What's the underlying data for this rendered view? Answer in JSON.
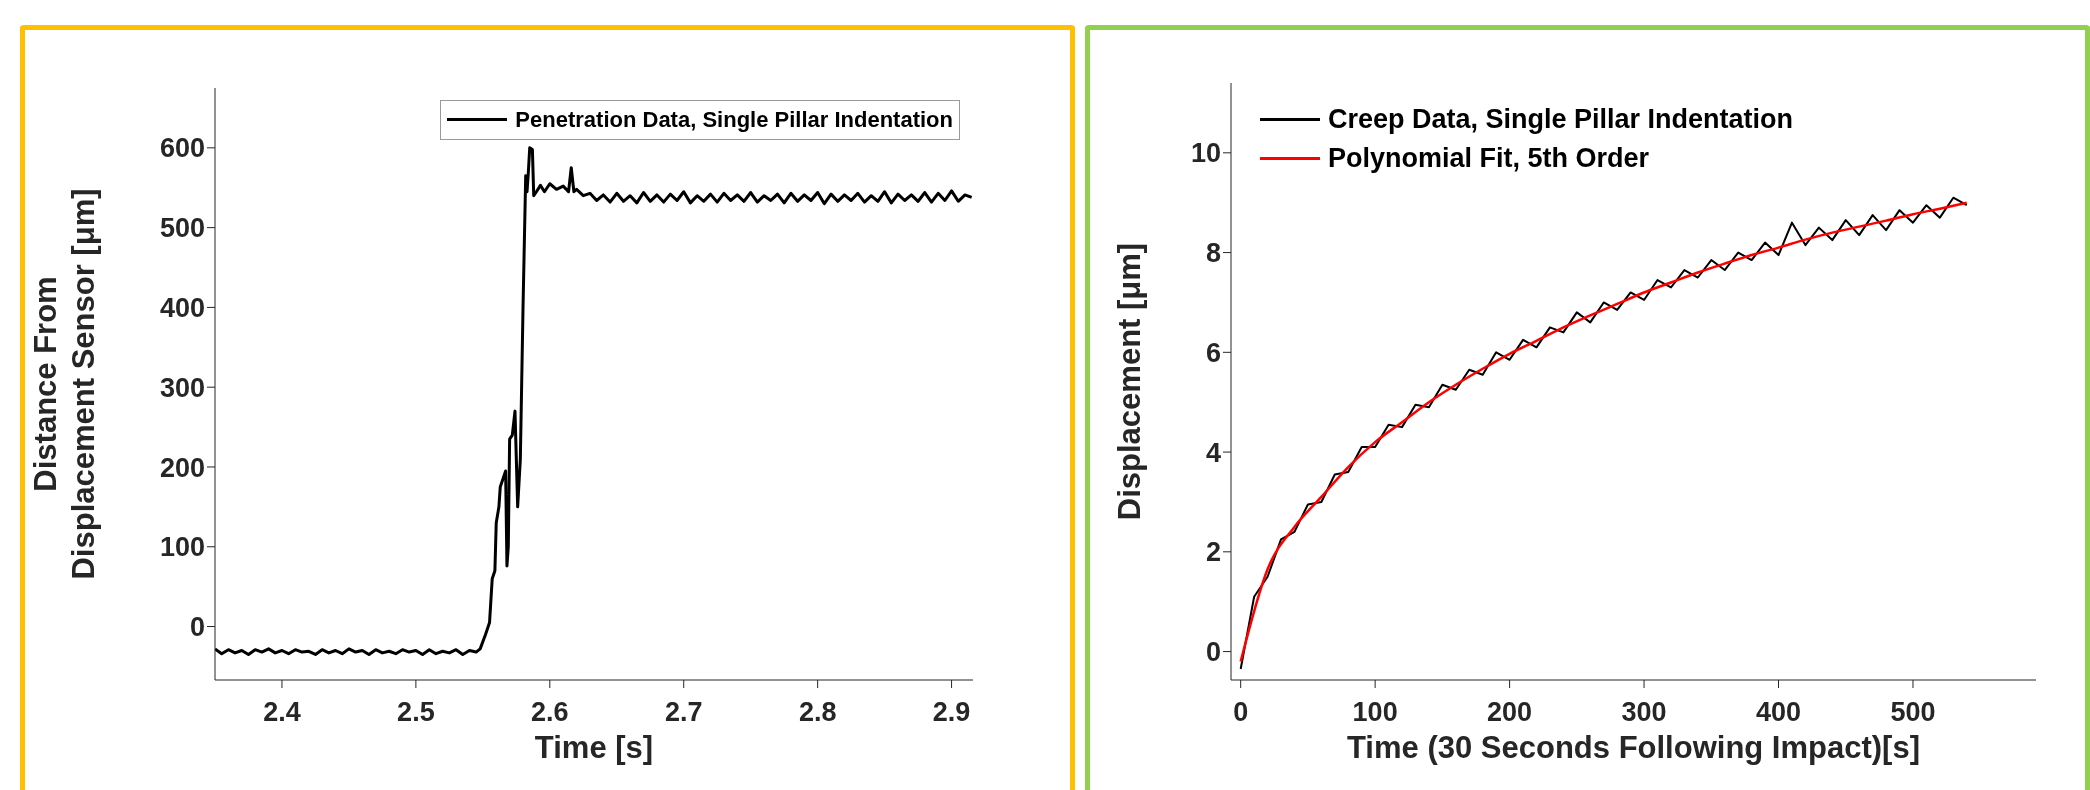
{
  "chart_data": [
    {
      "type": "line",
      "xlabel": "Time [s]",
      "ylabel": "Distance From\nDisplacement Sensor [μm]",
      "xlim": [
        2.35,
        2.916
      ],
      "xticks": [
        2.4,
        2.5,
        2.6,
        2.7,
        2.8,
        2.9
      ],
      "ylim": [
        -67,
        675
      ],
      "yticks": [
        0,
        100,
        200,
        300,
        400,
        500,
        600
      ],
      "legend": "top right",
      "grid": false,
      "marker": "none",
      "series": [
        {
          "name": "Penetration Data, Single Pillar Indentation",
          "color": "#000000",
          "x": [
            2.35,
            2.355,
            2.36,
            2.365,
            2.37,
            2.375,
            2.38,
            2.385,
            2.39,
            2.395,
            2.4,
            2.405,
            2.41,
            2.415,
            2.42,
            2.425,
            2.43,
            2.435,
            2.44,
            2.445,
            2.45,
            2.455,
            2.46,
            2.465,
            2.47,
            2.475,
            2.48,
            2.485,
            2.49,
            2.495,
            2.5,
            2.505,
            2.51,
            2.515,
            2.52,
            2.525,
            2.53,
            2.535,
            2.54,
            2.545,
            2.548,
            2.552,
            2.555,
            2.557,
            2.559,
            2.56,
            2.562,
            2.563,
            2.565,
            2.567,
            2.568,
            2.569,
            2.57,
            2.572,
            2.574,
            2.576,
            2.578,
            2.58,
            2.582,
            2.583,
            2.584,
            2.585,
            2.587,
            2.588,
            2.59,
            2.593,
            2.596,
            2.6,
            2.605,
            2.61,
            2.614,
            2.616,
            2.618,
            2.62,
            2.625,
            2.63,
            2.635,
            2.64,
            2.645,
            2.65,
            2.655,
            2.66,
            2.665,
            2.67,
            2.675,
            2.68,
            2.685,
            2.69,
            2.695,
            2.7,
            2.705,
            2.71,
            2.715,
            2.72,
            2.725,
            2.73,
            2.735,
            2.74,
            2.745,
            2.75,
            2.755,
            2.76,
            2.765,
            2.77,
            2.775,
            2.78,
            2.785,
            2.79,
            2.795,
            2.8,
            2.805,
            2.81,
            2.815,
            2.82,
            2.825,
            2.83,
            2.835,
            2.84,
            2.845,
            2.85,
            2.855,
            2.86,
            2.865,
            2.87,
            2.875,
            2.88,
            2.885,
            2.89,
            2.895,
            2.9,
            2.905,
            2.91,
            2.915
          ],
          "values": [
            -28,
            -34,
            -29,
            -33,
            -30,
            -35,
            -29,
            -32,
            -28,
            -33,
            -30,
            -34,
            -29,
            -32,
            -31,
            -35,
            -29,
            -33,
            -30,
            -34,
            -28,
            -32,
            -30,
            -35,
            -29,
            -33,
            -31,
            -34,
            -29,
            -32,
            -30,
            -35,
            -29,
            -34,
            -31,
            -33,
            -29,
            -35,
            -30,
            -32,
            -28,
            -10,
            5,
            60,
            70,
            130,
            150,
            175,
            185,
            195,
            76,
            100,
            235,
            240,
            270,
            150,
            210,
            400,
            565,
            545,
            570,
            600,
            598,
            540,
            545,
            553,
            545,
            555,
            548,
            552,
            545,
            575,
            545,
            548,
            540,
            543,
            534,
            541,
            532,
            543,
            533,
            540,
            531,
            544,
            533,
            541,
            532,
            542,
            534,
            545,
            531,
            540,
            533,
            542,
            532,
            543,
            534,
            541,
            533,
            544,
            532,
            540,
            534,
            542,
            531,
            543,
            533,
            541,
            534,
            544,
            530,
            542,
            533,
            541,
            534,
            543,
            532,
            540,
            533,
            545,
            531,
            542,
            534,
            541,
            533,
            544,
            532,
            543,
            534,
            546,
            533,
            541,
            538
          ]
        }
      ]
    },
    {
      "type": "line",
      "xlabel": "Time (30 Seconds Following Impact)[s]",
      "ylabel": "Displacement [μm]",
      "xlim": [
        -7.2,
        591.5
      ],
      "xticks": [
        0,
        100,
        200,
        300,
        400,
        500
      ],
      "ylim": [
        -0.57,
        11.4
      ],
      "yticks": [
        0,
        2,
        4,
        6,
        8,
        10
      ],
      "legend": "top left",
      "grid": false,
      "marker": "none",
      "series": [
        {
          "name": "Creep Data, Single Pillar Indentation",
          "color": "#000000",
          "x": [
            0,
            10,
            20,
            30,
            40,
            50,
            60,
            70,
            80,
            90,
            100,
            110,
            120,
            130,
            140,
            150,
            160,
            170,
            180,
            190,
            200,
            210,
            220,
            230,
            240,
            250,
            260,
            270,
            280,
            290,
            300,
            310,
            320,
            330,
            340,
            350,
            360,
            370,
            380,
            390,
            400,
            410,
            420,
            430,
            440,
            450,
            460,
            470,
            480,
            490,
            500,
            510,
            520,
            530,
            540
          ],
          "values": [
            -0.35,
            1.1,
            1.5,
            2.25,
            2.4,
            2.95,
            3.0,
            3.55,
            3.6,
            4.1,
            4.1,
            4.55,
            4.5,
            4.95,
            4.9,
            5.35,
            5.25,
            5.65,
            5.55,
            6.0,
            5.85,
            6.25,
            6.1,
            6.5,
            6.4,
            6.8,
            6.6,
            7.0,
            6.85,
            7.2,
            7.05,
            7.45,
            7.3,
            7.65,
            7.5,
            7.85,
            7.65,
            8.0,
            7.85,
            8.2,
            7.95,
            8.6,
            8.15,
            8.5,
            8.25,
            8.65,
            8.35,
            8.75,
            8.45,
            8.85,
            8.6,
            8.95,
            8.7,
            9.1,
            8.95
          ]
        },
        {
          "name": "Polynomial Fit, 5th Order",
          "color": "#ff0000",
          "x": [
            0,
            20,
            40,
            60,
            80,
            100,
            120,
            140,
            160,
            180,
            200,
            220,
            240,
            260,
            280,
            300,
            320,
            340,
            360,
            380,
            400,
            420,
            440,
            460,
            480,
            500,
            520,
            540
          ],
          "values": [
            -0.2,
            1.65,
            2.5,
            3.1,
            3.7,
            4.2,
            4.6,
            5.0,
            5.35,
            5.67,
            5.97,
            6.23,
            6.5,
            6.74,
            6.97,
            7.2,
            7.4,
            7.6,
            7.78,
            7.95,
            8.1,
            8.26,
            8.4,
            8.52,
            8.64,
            8.77,
            8.88,
            9.0
          ]
        }
      ]
    }
  ]
}
